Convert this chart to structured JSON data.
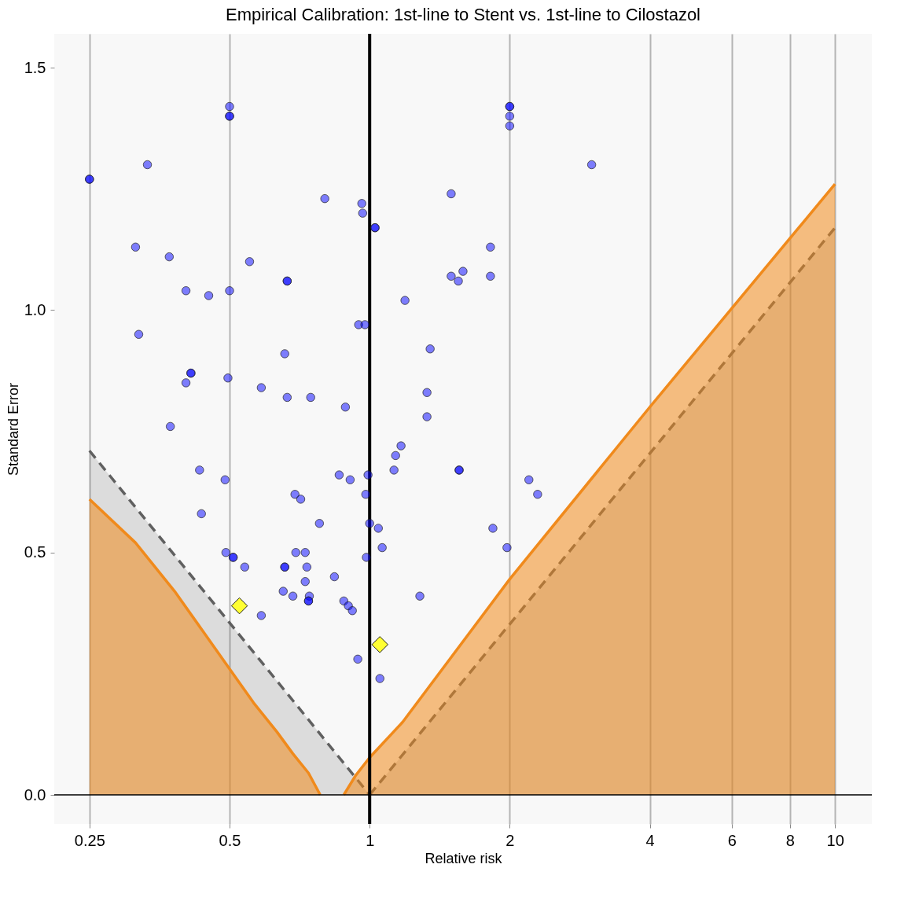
{
  "chart_data": {
    "type": "scatter",
    "title": "Empirical Calibration: 1st-line to Stent vs. 1st-line to Cilostazol",
    "xlabel": "Relative risk",
    "ylabel": "Standard Error",
    "log": "x",
    "grid": "x",
    "xlim": [
      0.21,
      12
    ],
    "xticks": [
      0.25,
      0.5,
      1,
      2,
      4,
      6,
      8,
      10
    ],
    "ylim": [
      -0.06,
      1.57
    ],
    "yticks": [
      {
        "value": 0,
        "label": "0.0"
      },
      0.5,
      {
        "value": 1,
        "label": "1.0"
      },
      1.5
    ],
    "ref_lines": [
      {
        "axis": "x",
        "value": 1,
        "color": "#000000"
      },
      {
        "axis": "y",
        "value": 0,
        "color": "#000000"
      }
    ],
    "series": [
      {
        "type": "area",
        "color": "#606060",
        "line_style": "dashed",
        "x": [
          0.25,
          1
        ],
        "values": [
          0.71,
          0
        ]
      },
      {
        "type": "area",
        "color": "#606060",
        "line_style": "dashed",
        "x": [
          1,
          10
        ],
        "values": [
          0,
          1.17
        ]
      },
      {
        "type": "area",
        "color": "#f08a1c",
        "line_style": "solid",
        "x": [
          0.25,
          0.314,
          0.381,
          0.5,
          0.563,
          0.632,
          0.684,
          0.739,
          0.783
        ],
        "values": [
          0.61,
          0.52,
          0.42,
          0.26,
          0.19,
          0.13,
          0.085,
          0.045,
          0
        ]
      },
      {
        "type": "area",
        "color": "#f08a1c",
        "line_style": "solid",
        "x": [
          0.88,
          0.933,
          1,
          1.177,
          2,
          4,
          10
        ],
        "values": [
          0,
          0.04,
          0.077,
          0.15,
          0.445,
          0.8,
          1.26
        ]
      },
      {
        "marker": "circle",
        "color": "#0000ff",
        "x": [
          0.25,
          0.25,
          0.333,
          0.5,
          0.5,
          0.5,
          2,
          2,
          2,
          2,
          3.0,
          0.801,
          0.962,
          0.966,
          1.027,
          1.027,
          1.497,
          0.314,
          0.371,
          0.552,
          1.818,
          1.587,
          1.497,
          1.551,
          1.818,
          0.665,
          0.665,
          0.403,
          0.5,
          0.451,
          1.191,
          0.319,
          0.947,
          0.977,
          0.657,
          1.349,
          0.413,
          0.413,
          0.403,
          0.496,
          0.585,
          0.665,
          0.747,
          0.887,
          1.328,
          1.328,
          0.373,
          1.168,
          1.137,
          1.128,
          0.431,
          1.557,
          1.557,
          0.86,
          0.908,
          0.992,
          0.489,
          2.199,
          2.296,
          0.691,
          0.711,
          0.981,
          0.435,
          0.78,
          1.0,
          1.044,
          1.84,
          1.064,
          1.973,
          0.491,
          0.509,
          0.509,
          0.539,
          0.694,
          0.727,
          0.984,
          0.657,
          0.657,
          0.733,
          0.84,
          0.727,
          0.652,
          0.684,
          0.742,
          0.739,
          0.739,
          0.88,
          0.9,
          0.918,
          0.585,
          1.282,
          0.943,
          1.052
        ],
        "values": [
          1.27,
          1.27,
          1.3,
          1.42,
          1.4,
          1.4,
          1.42,
          1.42,
          1.4,
          1.38,
          1.3,
          1.23,
          1.22,
          1.2,
          1.17,
          1.17,
          1.24,
          1.13,
          1.11,
          1.1,
          1.13,
          1.08,
          1.07,
          1.06,
          1.07,
          1.06,
          1.06,
          1.04,
          1.04,
          1.03,
          1.02,
          0.95,
          0.97,
          0.97,
          0.91,
          0.92,
          0.87,
          0.87,
          0.85,
          0.86,
          0.84,
          0.82,
          0.82,
          0.8,
          0.83,
          0.78,
          0.76,
          0.72,
          0.7,
          0.67,
          0.67,
          0.67,
          0.67,
          0.66,
          0.65,
          0.66,
          0.65,
          0.65,
          0.62,
          0.62,
          0.61,
          0.62,
          0.58,
          0.56,
          0.56,
          0.55,
          0.55,
          0.51,
          0.51,
          0.5,
          0.49,
          0.49,
          0.47,
          0.5,
          0.5,
          0.49,
          0.47,
          0.47,
          0.47,
          0.45,
          0.44,
          0.42,
          0.41,
          0.41,
          0.4,
          0.4,
          0.4,
          0.39,
          0.38,
          0.37,
          0.41,
          0.28,
          0.24
        ]
      },
      {
        "marker": "diamond",
        "color": "#ffff33",
        "x": [
          0.525,
          1.052
        ],
        "values": [
          0.39,
          0.31
        ]
      }
    ]
  }
}
